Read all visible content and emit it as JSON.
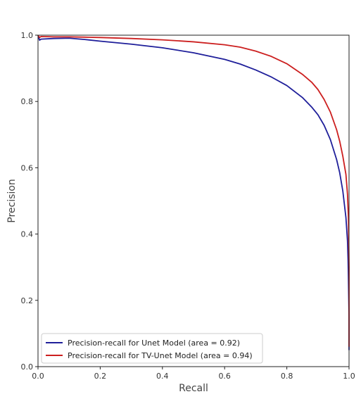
{
  "chart_data": {
    "type": "line",
    "title": "",
    "xlabel": "Recall",
    "ylabel": "Precision",
    "xlim": [
      0.0,
      1.0
    ],
    "ylim": [
      0.0,
      1.0
    ],
    "xticks": [
      0.0,
      0.2,
      0.4,
      0.6,
      0.8,
      1.0
    ],
    "yticks": [
      0.0,
      0.2,
      0.4,
      0.6,
      0.8,
      1.0
    ],
    "xtick_labels": [
      "0.0",
      "0.2",
      "0.4",
      "0.6",
      "0.8",
      "1.0"
    ],
    "ytick_labels": [
      "0.0",
      "0.2",
      "0.4",
      "0.6",
      "0.8",
      "1.0"
    ],
    "grid": false,
    "legend_position": "lower-left",
    "series": [
      {
        "name": "Precision-recall for Unet Model (area = 0.92)",
        "color": "#1f1f9a",
        "x": [
          0.0,
          0.005,
          0.01,
          0.05,
          0.1,
          0.15,
          0.2,
          0.3,
          0.4,
          0.5,
          0.6,
          0.65,
          0.7,
          0.75,
          0.8,
          0.85,
          0.88,
          0.9,
          0.92,
          0.94,
          0.96,
          0.97,
          0.98,
          0.99,
          0.995,
          0.997,
          0.998,
          1.0,
          1.0
        ],
        "y": [
          1.0,
          0.985,
          0.988,
          0.99,
          0.991,
          0.987,
          0.982,
          0.973,
          0.962,
          0.947,
          0.927,
          0.913,
          0.895,
          0.874,
          0.848,
          0.812,
          0.783,
          0.76,
          0.728,
          0.685,
          0.625,
          0.585,
          0.53,
          0.45,
          0.38,
          0.32,
          0.27,
          0.15,
          0.05
        ]
      },
      {
        "name": "Precision-recall for TV-Unet Model (area = 0.94)",
        "color": "#cc1f1f",
        "x": [
          0.0,
          0.005,
          0.01,
          0.05,
          0.1,
          0.15,
          0.2,
          0.3,
          0.4,
          0.5,
          0.6,
          0.65,
          0.7,
          0.75,
          0.8,
          0.85,
          0.88,
          0.9,
          0.92,
          0.94,
          0.96,
          0.97,
          0.98,
          0.99,
          0.995,
          0.998,
          1.0,
          1.0
        ],
        "y": [
          1.0,
          0.993,
          0.996,
          0.995,
          0.995,
          0.994,
          0.993,
          0.99,
          0.986,
          0.98,
          0.971,
          0.964,
          0.952,
          0.936,
          0.914,
          0.882,
          0.858,
          0.836,
          0.806,
          0.768,
          0.715,
          0.68,
          0.635,
          0.58,
          0.52,
          0.45,
          0.3,
          0.06
        ]
      }
    ]
  }
}
